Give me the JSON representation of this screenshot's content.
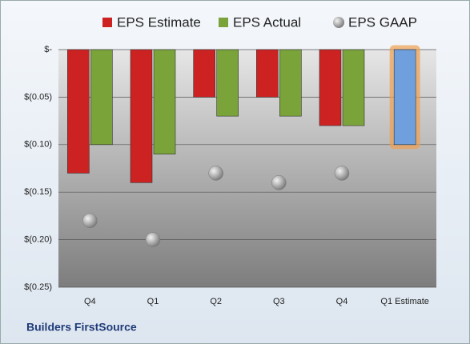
{
  "chart_data": {
    "type": "bar",
    "footer": "Builders FirstSource",
    "categories": [
      "Q4",
      "Q1",
      "Q2",
      "Q3",
      "Q4",
      "Q1 Estimate"
    ],
    "series": [
      {
        "name": "EPS Estimate",
        "color": "#cc2222",
        "point_colors": [
          "#cc2222",
          "#cc2222",
          "#cc2222",
          "#cc2222",
          "#cc2222",
          "#6f9fdc"
        ],
        "values": [
          -0.13,
          -0.14,
          -0.05,
          -0.05,
          -0.08,
          -0.1
        ]
      },
      {
        "name": "EPS Actual",
        "color": "#7aa33a",
        "values": [
          -0.1,
          -0.11,
          -0.07,
          -0.07,
          -0.08,
          null
        ]
      },
      {
        "name": "EPS GAAP",
        "color": "#a8a8a8",
        "marker": "circle",
        "values": [
          -0.18,
          -0.2,
          -0.13,
          -0.14,
          -0.13,
          null
        ]
      }
    ],
    "ylim": [
      -0.25,
      0
    ],
    "yticks": [
      {
        "value": 0,
        "label": "$-"
      },
      {
        "value": -0.05,
        "label": "$(0.05)"
      },
      {
        "value": -0.1,
        "label": "$(0.10)"
      },
      {
        "value": -0.15,
        "label": "$(0.15)"
      },
      {
        "value": -0.2,
        "label": "$(0.20)"
      },
      {
        "value": -0.25,
        "label": "$(0.25)"
      }
    ],
    "grid": true
  }
}
